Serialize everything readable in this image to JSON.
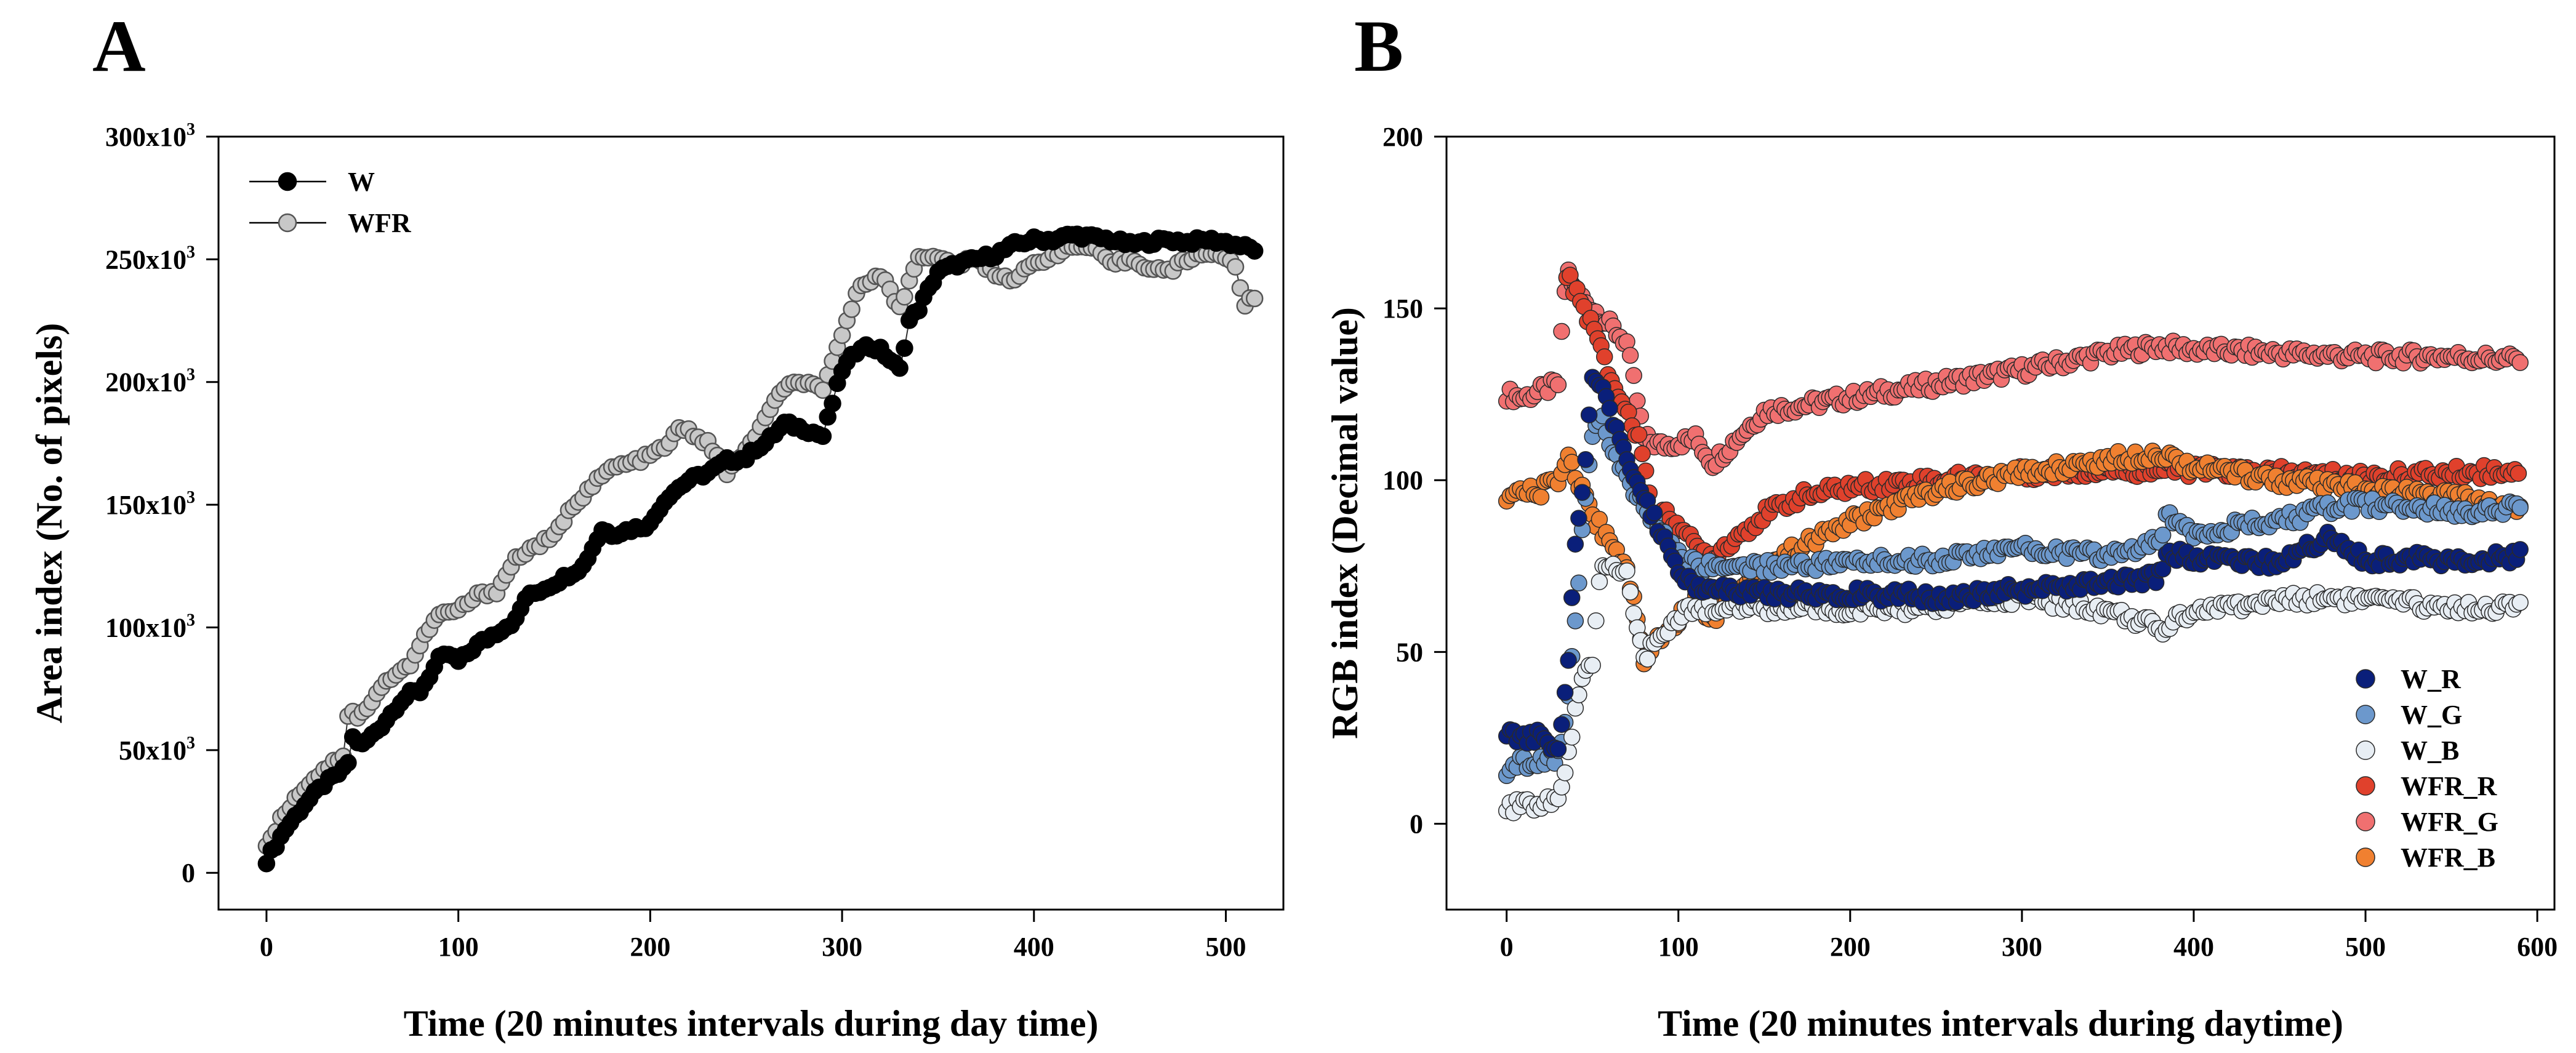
{
  "chart_data": [
    {
      "panel": "A",
      "type": "line",
      "xlabel": "Time (20 minutes intervals during day time)",
      "ylabel": "Area index (No. of pixels)",
      "xlim": [
        -25,
        530
      ],
      "ylim": [
        -15000,
        300000
      ],
      "xticks": [
        0,
        100,
        200,
        300,
        400,
        500
      ],
      "yticks": [
        {
          "value": 0,
          "base": "0",
          "sup": ""
        },
        {
          "value": 50000,
          "base": "50x10",
          "sup": "3"
        },
        {
          "value": 100000,
          "base": "100x10",
          "sup": "3"
        },
        {
          "value": 150000,
          "base": "150x10",
          "sup": "3"
        },
        {
          "value": 200000,
          "base": "200x10",
          "sup": "3"
        },
        {
          "value": 250000,
          "base": "250x10",
          "sup": "3"
        },
        {
          "value": 300000,
          "base": "300x10",
          "sup": "3"
        }
      ],
      "legend": {
        "placement": "top-left",
        "entries": [
          "W",
          "WFR"
        ]
      },
      "series": [
        {
          "name": "W",
          "color": "#000000",
          "edge": "#000000",
          "x": [
            0,
            10,
            20,
            30,
            42,
            45,
            50,
            60,
            70,
            75,
            80,
            90,
            95,
            100,
            110,
            120,
            130,
            135,
            150,
            165,
            175,
            180,
            190,
            200,
            205,
            210,
            220,
            230,
            240,
            250,
            255,
            260,
            270,
            280,
            290,
            300,
            310,
            320,
            330,
            335,
            340,
            350,
            360,
            370,
            380,
            390,
            400,
            410,
            420,
            430,
            440,
            450,
            460,
            470,
            480,
            490,
            500,
            510,
            515
          ],
          "y": [
            5000,
            18000,
            28000,
            36000,
            43000,
            55000,
            52000,
            60000,
            70000,
            73000,
            74000,
            87000,
            89000,
            86000,
            93000,
            98000,
            103000,
            112000,
            118000,
            125000,
            140000,
            138000,
            140000,
            142000,
            149000,
            154000,
            160000,
            163000,
            168000,
            169000,
            173000,
            175000,
            183000,
            181000,
            178000,
            205000,
            215000,
            213000,
            205000,
            225000,
            230000,
            245000,
            248000,
            250000,
            252000,
            256000,
            258000,
            258000,
            260000,
            259000,
            258000,
            256000,
            257000,
            258000,
            257000,
            258000,
            257000,
            255000,
            254000
          ]
        },
        {
          "name": "WFR",
          "color": "#c8c8c8",
          "edge": "#555555",
          "x": [
            0,
            10,
            20,
            30,
            40,
            43,
            48,
            55,
            65,
            75,
            85,
            90,
            100,
            110,
            120,
            130,
            140,
            150,
            160,
            170,
            180,
            190,
            200,
            210,
            215,
            220,
            230,
            240,
            250,
            260,
            270,
            280,
            290,
            300,
            310,
            320,
            325,
            330,
            340,
            350,
            360,
            370,
            380,
            390,
            400,
            410,
            420,
            430,
            440,
            450,
            460,
            470,
            480,
            490,
            500,
            505,
            510,
            515
          ],
          "y": [
            11000,
            25000,
            35000,
            42000,
            48000,
            68000,
            63000,
            70000,
            80000,
            85000,
            100000,
            105000,
            107000,
            113000,
            115000,
            128000,
            133000,
            137000,
            150000,
            158000,
            165000,
            167000,
            170000,
            175000,
            181000,
            180000,
            175000,
            163000,
            172000,
            185000,
            198000,
            200000,
            196000,
            220000,
            240000,
            244000,
            237000,
            230000,
            252000,
            250000,
            248000,
            250000,
            244000,
            242000,
            248000,
            252000,
            255000,
            255000,
            248000,
            250000,
            247000,
            245000,
            250000,
            253000,
            251000,
            246000,
            232000,
            234000
          ]
        }
      ]
    },
    {
      "panel": "B",
      "type": "scatter",
      "xlabel": "Time (20 minutes intervals during daytime)",
      "ylabel": "RGB index (Decimal value)",
      "xlim": [
        -35,
        610
      ],
      "ylim": [
        -25,
        200
      ],
      "xticks": [
        0,
        100,
        200,
        300,
        400,
        500,
        600
      ],
      "yticks": [
        0,
        50,
        100,
        150,
        200
      ],
      "legend": {
        "placement": "bottom-right",
        "entries": [
          "W_R",
          "W_G",
          "W_B",
          "WFR_R",
          "WFR_G",
          "WFR_B"
        ]
      },
      "series": [
        {
          "name": "W_R",
          "color": "#0a1f7a",
          "x": [
            0,
            10,
            20,
            30,
            35,
            40,
            45,
            50,
            55,
            60,
            70,
            80,
            90,
            100,
            110,
            150,
            200,
            250,
            300,
            350,
            380,
            385,
            400,
            450,
            480,
            500,
            550,
            590
          ],
          "y": [
            27,
            25,
            26,
            22,
            40,
            80,
            100,
            130,
            128,
            120,
            105,
            95,
            85,
            75,
            68,
            67,
            67,
            66,
            68,
            70,
            72,
            79,
            77,
            76,
            84,
            77,
            77,
            78
          ]
        },
        {
          "name": "W_G",
          "color": "#6c98cc",
          "x": [
            0,
            10,
            20,
            30,
            35,
            40,
            45,
            50,
            55,
            60,
            70,
            80,
            90,
            100,
            110,
            150,
            200,
            250,
            300,
            350,
            380,
            385,
            400,
            450,
            480,
            500,
            550,
            590
          ],
          "y": [
            16,
            18,
            18,
            20,
            30,
            60,
            90,
            112,
            120,
            110,
            100,
            92,
            85,
            78,
            75,
            75,
            76,
            77,
            80,
            78,
            82,
            90,
            85,
            88,
            92,
            93,
            91,
            92
          ]
        },
        {
          "name": "W_B",
          "color": "#e8eef4",
          "x": [
            0,
            10,
            20,
            30,
            35,
            40,
            45,
            50,
            55,
            60,
            70,
            80,
            90,
            100,
            110,
            150,
            200,
            250,
            300,
            350,
            375,
            380,
            390,
            400,
            450,
            480,
            500,
            550,
            590
          ],
          "y": [
            5,
            5,
            6,
            7,
            15,
            35,
            45,
            48,
            75,
            74,
            72,
            48,
            55,
            60,
            63,
            63,
            62,
            63,
            66,
            62,
            58,
            55,
            60,
            62,
            65,
            66,
            65,
            63,
            63
          ]
        },
        {
          "name": "WFR_R",
          "color": "#e0412c",
          "x": [
            35,
            40,
            50,
            60,
            70,
            80,
            85,
            90,
            100,
            110,
            120,
            130,
            150,
            170,
            200,
            250,
            300,
            350,
            400,
            450,
            500,
            550,
            590
          ],
          "y": [
            160,
            155,
            145,
            130,
            120,
            108,
            88,
            90,
            88,
            80,
            78,
            82,
            90,
            95,
            98,
            100,
            102,
            103,
            103,
            102,
            101,
            102,
            103
          ]
        },
        {
          "name": "WFR_G",
          "color": "#f07070",
          "x": [
            0,
            10,
            20,
            30,
            35,
            40,
            50,
            60,
            70,
            80,
            90,
            100,
            110,
            120,
            130,
            150,
            200,
            250,
            300,
            350,
            380,
            400,
            450,
            500,
            550,
            590
          ],
          "y": [
            125,
            124,
            126,
            128,
            162,
            155,
            150,
            145,
            140,
            112,
            110,
            111,
            112,
            105,
            110,
            120,
            124,
            128,
            132,
            137,
            139,
            138,
            137,
            136,
            136,
            135
          ]
        },
        {
          "name": "WFR_B",
          "color": "#f08030",
          "x": [
            0,
            10,
            20,
            30,
            35,
            40,
            50,
            60,
            70,
            80,
            90,
            100,
            110,
            120,
            130,
            150,
            200,
            250,
            300,
            350,
            380,
            400,
            450,
            500,
            550,
            590
          ],
          "y": [
            95,
            96,
            97,
            100,
            108,
            102,
            90,
            82,
            75,
            48,
            55,
            60,
            65,
            60,
            65,
            75,
            88,
            97,
            102,
            106,
            108,
            104,
            100,
            97,
            95,
            92
          ]
        }
      ]
    }
  ]
}
